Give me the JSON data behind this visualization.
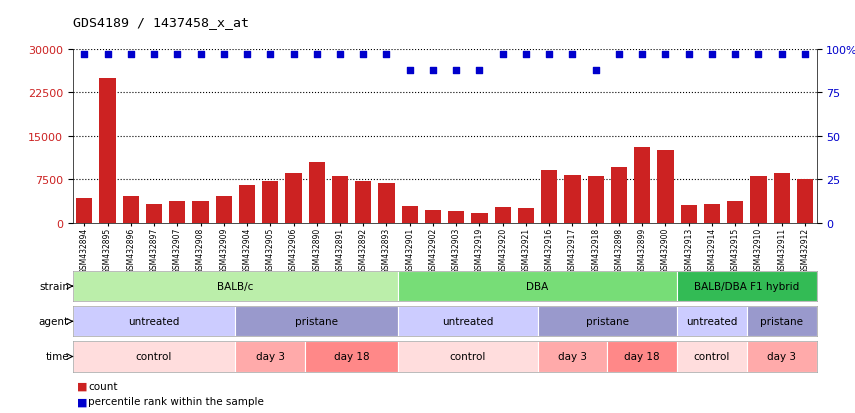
{
  "title": "GDS4189 / 1437458_x_at",
  "samples": [
    "GSM432894",
    "GSM432895",
    "GSM432896",
    "GSM432897",
    "GSM432907",
    "GSM432908",
    "GSM432909",
    "GSM432904",
    "GSM432905",
    "GSM432906",
    "GSM432890",
    "GSM432891",
    "GSM432892",
    "GSM432893",
    "GSM432901",
    "GSM432902",
    "GSM432903",
    "GSM432919",
    "GSM432920",
    "GSM432921",
    "GSM432916",
    "GSM432917",
    "GSM432918",
    "GSM432898",
    "GSM432899",
    "GSM432900",
    "GSM432913",
    "GSM432914",
    "GSM432915",
    "GSM432910",
    "GSM432911",
    "GSM432912"
  ],
  "counts": [
    4200,
    25000,
    4500,
    3200,
    3800,
    3700,
    4600,
    6500,
    7200,
    8500,
    10500,
    8000,
    7100,
    6800,
    2800,
    2200,
    2000,
    1600,
    2600,
    2500,
    9000,
    8200,
    8000,
    9500,
    13000,
    12500,
    3000,
    3200,
    3700,
    8000,
    8500,
    7500
  ],
  "percentile_ranks": [
    97,
    97,
    97,
    97,
    97,
    97,
    97,
    97,
    97,
    97,
    97,
    97,
    97,
    97,
    88,
    88,
    88,
    88,
    97,
    97,
    97,
    97,
    88,
    97,
    97,
    97,
    97,
    97,
    97,
    97,
    97,
    97
  ],
  "bar_color": "#cc2222",
  "dot_color": "#0000cc",
  "ylim_left": [
    0,
    30000
  ],
  "ylim_right": [
    0,
    100
  ],
  "yticks_left": [
    0,
    7500,
    15000,
    22500,
    30000
  ],
  "yticks_right": [
    0,
    25,
    50,
    75,
    100
  ],
  "strain_groups": [
    {
      "label": "BALB/c",
      "start": 0,
      "end": 13,
      "color": "#bbeeaa"
    },
    {
      "label": "DBA",
      "start": 14,
      "end": 25,
      "color": "#77dd77"
    },
    {
      "label": "BALB/DBA F1 hybrid",
      "start": 26,
      "end": 31,
      "color": "#33bb55"
    }
  ],
  "agent_groups": [
    {
      "label": "untreated",
      "start": 0,
      "end": 6,
      "color": "#ccccff"
    },
    {
      "label": "pristane",
      "start": 7,
      "end": 13,
      "color": "#9999cc"
    },
    {
      "label": "untreated",
      "start": 14,
      "end": 19,
      "color": "#ccccff"
    },
    {
      "label": "pristane",
      "start": 20,
      "end": 25,
      "color": "#9999cc"
    },
    {
      "label": "untreated",
      "start": 26,
      "end": 28,
      "color": "#ccccff"
    },
    {
      "label": "pristane",
      "start": 29,
      "end": 31,
      "color": "#9999cc"
    }
  ],
  "time_groups": [
    {
      "label": "control",
      "start": 0,
      "end": 6,
      "color": "#ffdddd"
    },
    {
      "label": "day 3",
      "start": 7,
      "end": 9,
      "color": "#ffaaaa"
    },
    {
      "label": "day 18",
      "start": 10,
      "end": 13,
      "color": "#ff8888"
    },
    {
      "label": "control",
      "start": 14,
      "end": 19,
      "color": "#ffdddd"
    },
    {
      "label": "day 3",
      "start": 20,
      "end": 22,
      "color": "#ffaaaa"
    },
    {
      "label": "day 18",
      "start": 23,
      "end": 25,
      "color": "#ff8888"
    },
    {
      "label": "control",
      "start": 26,
      "end": 28,
      "color": "#ffdddd"
    },
    {
      "label": "day 3",
      "start": 29,
      "end": 31,
      "color": "#ffaaaa"
    }
  ],
  "legend_count_label": "count",
  "legend_pct_label": "percentile rank within the sample",
  "background_color": "#ffffff"
}
